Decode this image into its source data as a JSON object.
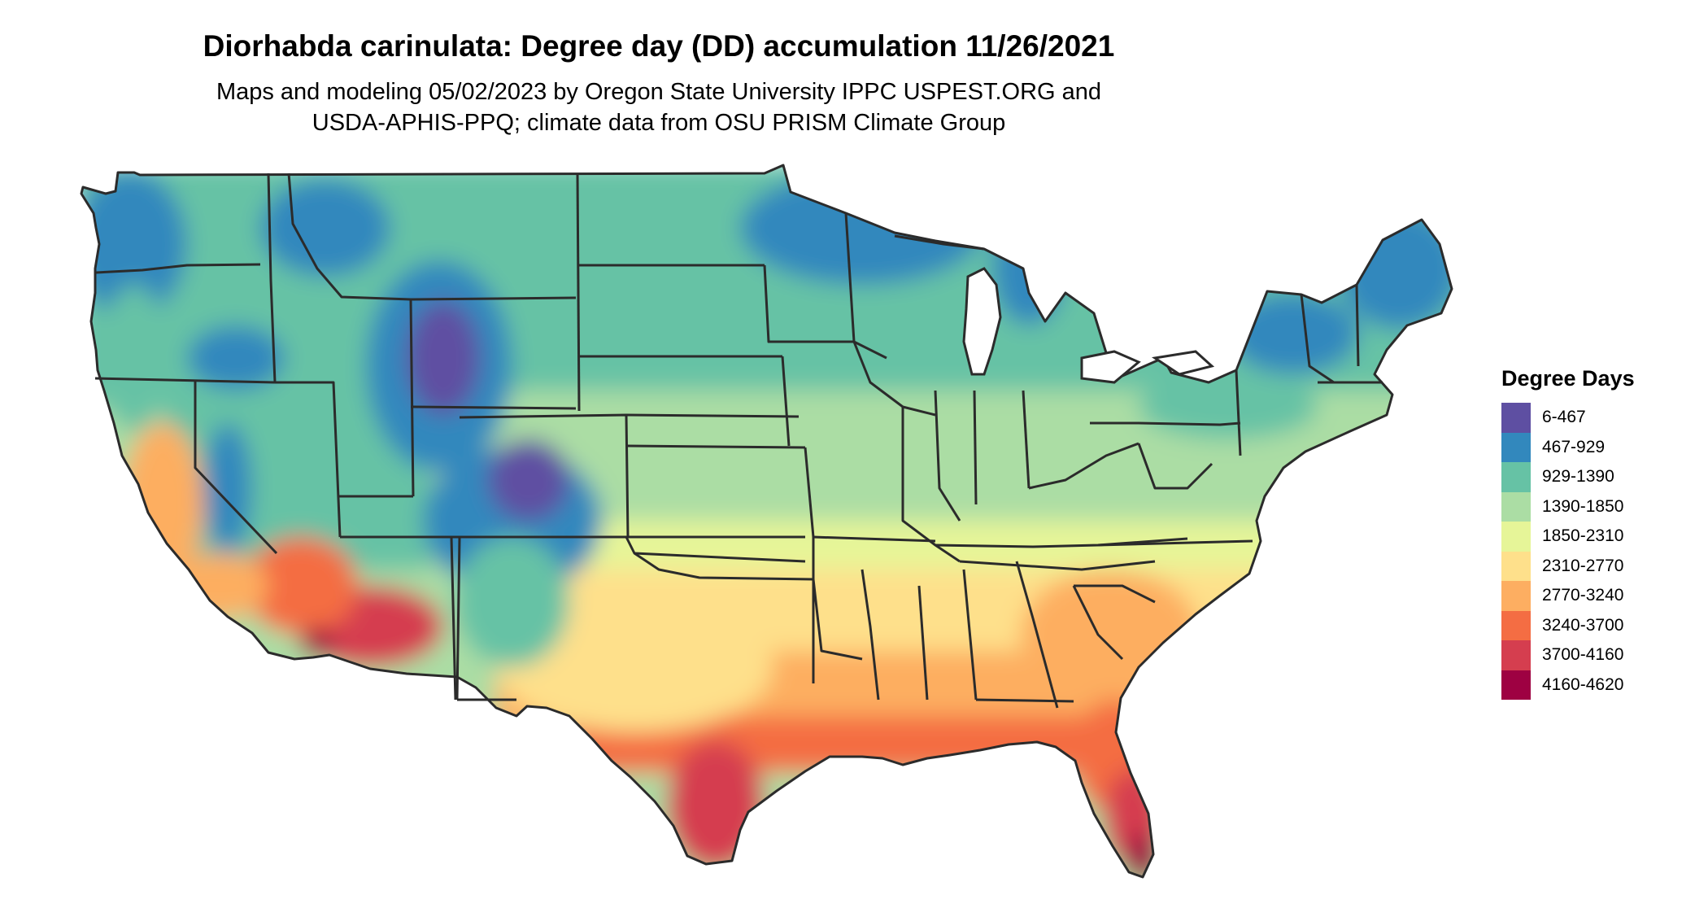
{
  "title": "Diorhabda carinulata: Degree day (DD) accumulation 11/26/2021",
  "subtitle": {
    "line1": "Maps and modeling 05/02/2023 by Oregon State University IPPC USPEST.ORG and",
    "line2": "USDA-APHIS-PPQ; climate data from OSU PRISM Climate Group"
  },
  "legend": {
    "title": "Degree Days",
    "items": [
      {
        "label": "6-467",
        "color": "#5e4fa2"
      },
      {
        "label": "467-929",
        "color": "#3288bd"
      },
      {
        "label": "929-1390",
        "color": "#66c2a5"
      },
      {
        "label": "1390-1850",
        "color": "#abdda4"
      },
      {
        "label": "1850-2310",
        "color": "#e6f598"
      },
      {
        "label": "2310-2770",
        "color": "#fee08b"
      },
      {
        "label": "2770-3240",
        "color": "#fdae61"
      },
      {
        "label": "3240-3700",
        "color": "#f46d43"
      },
      {
        "label": "3700-4160",
        "color": "#d53e4f"
      },
      {
        "label": "4160-4620",
        "color": "#9e0142"
      }
    ]
  },
  "map": {
    "region": "contiguous-united-states",
    "border_color": "#2b2b2b"
  }
}
